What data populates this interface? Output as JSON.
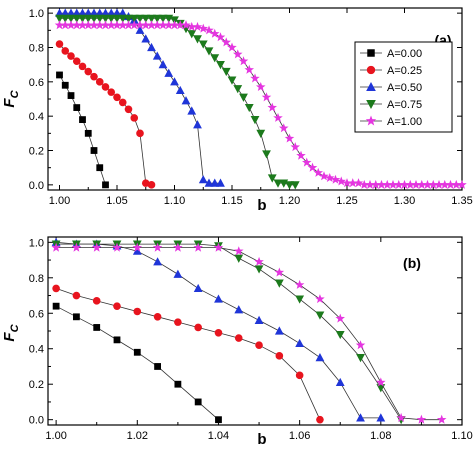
{
  "chart_data": [
    {
      "type": "line",
      "panel_label": "(a)",
      "xlabel": "b",
      "ylabel": "F",
      "ylabel_sub": "C",
      "xlim": [
        0.99,
        1.35
      ],
      "ylim": [
        -0.03,
        1.03
      ],
      "xticks": [
        "1.00",
        "1.05",
        "1.10",
        "1.15",
        "1.20",
        "1.25",
        "1.30",
        "1.35"
      ],
      "yticks": [
        "0.0",
        "0.2",
        "0.4",
        "0.6",
        "0.8",
        "1.0"
      ],
      "legend_position": "center-right",
      "series": [
        {
          "name": "A=0.00",
          "color": "#000000",
          "marker": "square",
          "x": [
            1.0,
            1.005,
            1.01,
            1.015,
            1.02,
            1.025,
            1.03,
            1.035,
            1.04
          ],
          "y": [
            0.64,
            0.58,
            0.52,
            0.45,
            0.38,
            0.3,
            0.2,
            0.1,
            0.0
          ]
        },
        {
          "name": "A=0.25",
          "color": "#e8141e",
          "marker": "circle",
          "x": [
            1.0,
            1.005,
            1.01,
            1.015,
            1.02,
            1.025,
            1.03,
            1.035,
            1.04,
            1.045,
            1.05,
            1.055,
            1.06,
            1.065,
            1.07,
            1.075,
            1.08
          ],
          "y": [
            0.82,
            0.78,
            0.75,
            0.72,
            0.69,
            0.66,
            0.63,
            0.6,
            0.57,
            0.54,
            0.51,
            0.48,
            0.44,
            0.39,
            0.3,
            0.01,
            0.0
          ]
        },
        {
          "name": "A=0.50",
          "color": "#1f35d8",
          "marker": "triangle-up",
          "x": [
            1.0,
            1.005,
            1.01,
            1.015,
            1.02,
            1.025,
            1.03,
            1.035,
            1.04,
            1.045,
            1.05,
            1.055,
            1.06,
            1.065,
            1.07,
            1.075,
            1.08,
            1.085,
            1.09,
            1.095,
            1.1,
            1.105,
            1.11,
            1.115,
            1.12,
            1.125,
            1.13,
            1.135,
            1.14
          ],
          "y": [
            1.0,
            1.0,
            1.0,
            1.0,
            1.0,
            1.0,
            1.0,
            1.0,
            1.0,
            1.0,
            1.0,
            1.0,
            0.98,
            0.96,
            0.9,
            0.85,
            0.8,
            0.75,
            0.7,
            0.65,
            0.6,
            0.55,
            0.49,
            0.43,
            0.35,
            0.03,
            0.01,
            0.01,
            0.01
          ]
        },
        {
          "name": "A=0.75",
          "color": "#1c7a1c",
          "marker": "triangle-down",
          "x": [
            1.0,
            1.005,
            1.01,
            1.015,
            1.02,
            1.025,
            1.03,
            1.035,
            1.04,
            1.045,
            1.05,
            1.055,
            1.06,
            1.065,
            1.07,
            1.075,
            1.08,
            1.085,
            1.09,
            1.095,
            1.1,
            1.105,
            1.11,
            1.115,
            1.12,
            1.125,
            1.13,
            1.135,
            1.14,
            1.145,
            1.15,
            1.155,
            1.16,
            1.165,
            1.17,
            1.175,
            1.18,
            1.185,
            1.19,
            1.195,
            1.2,
            1.205
          ],
          "y": [
            0.97,
            0.97,
            0.97,
            0.97,
            0.97,
            0.97,
            0.97,
            0.97,
            0.97,
            0.97,
            0.97,
            0.97,
            0.97,
            0.97,
            0.97,
            0.97,
            0.97,
            0.97,
            0.97,
            0.97,
            0.96,
            0.94,
            0.91,
            0.88,
            0.85,
            0.82,
            0.78,
            0.74,
            0.7,
            0.66,
            0.61,
            0.56,
            0.51,
            0.45,
            0.38,
            0.3,
            0.18,
            0.04,
            0.01,
            0.01,
            0.0,
            0.0
          ]
        },
        {
          "name": "A=1.00",
          "color": "#e536e0",
          "marker": "star",
          "x": [
            1.0,
            1.005,
            1.01,
            1.015,
            1.02,
            1.025,
            1.03,
            1.035,
            1.04,
            1.045,
            1.05,
            1.055,
            1.06,
            1.065,
            1.07,
            1.075,
            1.08,
            1.085,
            1.09,
            1.095,
            1.1,
            1.105,
            1.11,
            1.115,
            1.12,
            1.125,
            1.13,
            1.135,
            1.14,
            1.145,
            1.15,
            1.155,
            1.16,
            1.165,
            1.17,
            1.175,
            1.18,
            1.185,
            1.19,
            1.195,
            1.2,
            1.205,
            1.21,
            1.215,
            1.22,
            1.225,
            1.23,
            1.235,
            1.24,
            1.245,
            1.25,
            1.255,
            1.26,
            1.265,
            1.27,
            1.275,
            1.28,
            1.285,
            1.29,
            1.295,
            1.3,
            1.305,
            1.31,
            1.315,
            1.32,
            1.325,
            1.33,
            1.335,
            1.34,
            1.345,
            1.35
          ],
          "y": [
            0.93,
            0.93,
            0.93,
            0.93,
            0.93,
            0.93,
            0.93,
            0.93,
            0.93,
            0.93,
            0.93,
            0.93,
            0.93,
            0.93,
            0.93,
            0.93,
            0.93,
            0.93,
            0.93,
            0.93,
            0.93,
            0.93,
            0.93,
            0.92,
            0.92,
            0.91,
            0.9,
            0.88,
            0.86,
            0.83,
            0.8,
            0.76,
            0.72,
            0.67,
            0.62,
            0.57,
            0.51,
            0.45,
            0.39,
            0.33,
            0.27,
            0.22,
            0.17,
            0.13,
            0.1,
            0.07,
            0.05,
            0.04,
            0.03,
            0.02,
            0.01,
            0.01,
            0.01,
            0.0,
            0.0,
            0.0,
            0.0,
            0.0,
            0.0,
            0.0,
            0.0,
            0.0,
            0.0,
            0.0,
            0.0,
            0.0,
            0.0,
            0.0,
            0.0,
            0.0,
            0.0
          ]
        }
      ]
    },
    {
      "type": "line",
      "panel_label": "(b)",
      "xlabel": "b",
      "ylabel": "F",
      "ylabel_sub": "C",
      "xlim": [
        0.998,
        1.1
      ],
      "ylim": [
        -0.03,
        1.03
      ],
      "xticks": [
        "1.00",
        "1.02",
        "1.04",
        "1.06",
        "1.08",
        "1.10"
      ],
      "yticks": [
        "0.0",
        "0.2",
        "0.4",
        "0.6",
        "0.8",
        "1.0"
      ],
      "series": [
        {
          "name": "A=0.00",
          "color": "#000000",
          "marker": "square",
          "x": [
            1.0,
            1.005,
            1.01,
            1.015,
            1.02,
            1.025,
            1.03,
            1.035,
            1.04
          ],
          "y": [
            0.64,
            0.58,
            0.52,
            0.45,
            0.38,
            0.3,
            0.2,
            0.1,
            0.0
          ]
        },
        {
          "name": "A=0.25",
          "color": "#e8141e",
          "marker": "circle",
          "x": [
            1.0,
            1.005,
            1.01,
            1.015,
            1.02,
            1.025,
            1.03,
            1.035,
            1.04,
            1.045,
            1.05,
            1.055,
            1.06,
            1.065
          ],
          "y": [
            0.74,
            0.7,
            0.67,
            0.64,
            0.61,
            0.58,
            0.55,
            0.52,
            0.49,
            0.46,
            0.42,
            0.36,
            0.25,
            0.0
          ]
        },
        {
          "name": "A=0.50",
          "color": "#1f35d8",
          "marker": "triangle-up",
          "x": [
            1.0,
            1.005,
            1.01,
            1.015,
            1.02,
            1.025,
            1.03,
            1.035,
            1.04,
            1.045,
            1.05,
            1.055,
            1.06,
            1.065,
            1.07,
            1.075,
            1.08
          ],
          "y": [
            1.0,
            0.99,
            0.99,
            0.98,
            0.95,
            0.89,
            0.82,
            0.74,
            0.68,
            0.62,
            0.56,
            0.5,
            0.43,
            0.35,
            0.21,
            0.01,
            0.01
          ]
        },
        {
          "name": "A=0.75",
          "color": "#1c7a1c",
          "marker": "triangle-down",
          "x": [
            1.0,
            1.005,
            1.01,
            1.015,
            1.02,
            1.025,
            1.03,
            1.035,
            1.04,
            1.045,
            1.05,
            1.055,
            1.06,
            1.065,
            1.07,
            1.075,
            1.08,
            1.085
          ],
          "y": [
            0.99,
            0.99,
            0.99,
            0.99,
            0.99,
            0.99,
            0.99,
            0.99,
            0.98,
            0.91,
            0.85,
            0.77,
            0.68,
            0.59,
            0.48,
            0.35,
            0.18,
            0.0
          ]
        },
        {
          "name": "A=1.00",
          "color": "#e536e0",
          "marker": "star",
          "x": [
            1.0,
            1.005,
            1.01,
            1.015,
            1.02,
            1.025,
            1.03,
            1.035,
            1.04,
            1.045,
            1.05,
            1.055,
            1.06,
            1.065,
            1.07,
            1.075,
            1.08,
            1.085,
            1.09,
            1.095
          ],
          "y": [
            0.97,
            0.97,
            0.97,
            0.97,
            0.97,
            0.97,
            0.97,
            0.97,
            0.97,
            0.95,
            0.89,
            0.83,
            0.76,
            0.68,
            0.57,
            0.42,
            0.21,
            0.01,
            0.0,
            0.0
          ]
        }
      ]
    }
  ]
}
